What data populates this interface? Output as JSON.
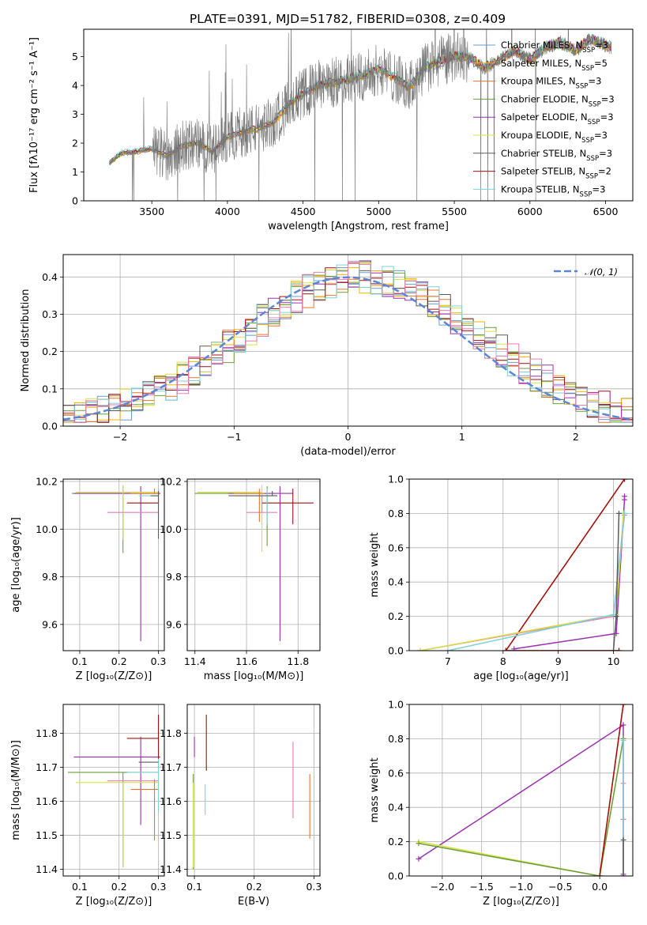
{
  "figure": {
    "title": "PLATE=0391, MJD=51782, FIBERID=0308, z=0.409"
  },
  "colors": {
    "model_palette": [
      "#6a9bd8",
      "#ffb000",
      "#e8742a",
      "#6b9e3a",
      "#9b30b0",
      "#d8e040",
      "#5a5a5a",
      "#a01010",
      "#7ed0d8"
    ],
    "pink": "#e87bb8",
    "gaussian": "#5b86d6",
    "grid": "#b0b0b0"
  },
  "chart_data": [
    {
      "id": "spectrum",
      "type": "line",
      "xlabel": "wavelength [Angstrom, rest frame]",
      "ylabel": "Flux [fλ10⁻¹⁷ erg cm⁻² s⁻¹ A⁻¹]",
      "xlim": [
        3050,
        6680
      ],
      "ylim": [
        0,
        5.95
      ],
      "xticks": [
        3500,
        4000,
        4500,
        5000,
        5500,
        6000,
        6500
      ],
      "yticks": [
        0,
        1,
        2,
        3,
        4,
        5
      ],
      "data_range": [
        3220,
        6540
      ],
      "continuum": [
        [
          3220,
          1.3
        ],
        [
          3300,
          1.65
        ],
        [
          3400,
          1.7
        ],
        [
          3500,
          1.8
        ],
        [
          3600,
          1.55
        ],
        [
          3700,
          1.9
        ],
        [
          3800,
          2.0
        ],
        [
          3900,
          1.7
        ],
        [
          4000,
          2.2
        ],
        [
          4100,
          2.4
        ],
        [
          4200,
          2.5
        ],
        [
          4300,
          2.7
        ],
        [
          4400,
          3.3
        ],
        [
          4500,
          3.7
        ],
        [
          4600,
          4.0
        ],
        [
          4700,
          4.1
        ],
        [
          4800,
          4.2
        ],
        [
          4900,
          4.35
        ],
        [
          5000,
          4.55
        ],
        [
          5100,
          4.3
        ],
        [
          5200,
          3.9
        ],
        [
          5300,
          4.6
        ],
        [
          5400,
          4.8
        ],
        [
          5500,
          5.0
        ],
        [
          5600,
          4.95
        ],
        [
          5700,
          4.6
        ],
        [
          5800,
          4.9
        ],
        [
          5900,
          5.2
        ],
        [
          6000,
          4.9
        ],
        [
          6100,
          5.3
        ],
        [
          6200,
          5.5
        ],
        [
          6300,
          5.2
        ],
        [
          6400,
          5.6
        ],
        [
          6540,
          5.3
        ]
      ],
      "legend_position": "upper right",
      "legend": [
        "Chabrier MILES, N_SSP=3",
        "Salpeter MILES, N_SSP=5",
        "Kroupa MILES, N_SSP=3",
        "Chabrier ELODIE, N_SSP=3",
        "Salpeter ELODIE, N_SSP=3",
        "Kroupa ELODIE, N_SSP=3",
        "Chabrier STELIB, N_SSP=3",
        "Salpeter STELIB, N_SSP=2",
        "Kroupa STELIB, N_SSP=3"
      ]
    },
    {
      "id": "residuals",
      "type": "line",
      "xlabel": "(data-model)/error",
      "ylabel": "Normed distribution",
      "xlim": [
        -2.5,
        2.5
      ],
      "ylim": [
        0,
        0.46
      ],
      "xticks": [
        -2,
        -1,
        0,
        1,
        2
      ],
      "yticks": [
        0.0,
        0.1,
        0.2,
        0.3,
        0.4
      ],
      "gaussian_label": "𝒩(0, 1)",
      "legend_position": "upper right",
      "hist_bins": {
        "start": -2.5,
        "width": 0.1
      }
    },
    {
      "id": "age_vs_Z",
      "type": "scatter",
      "xlabel": "Z [log₁₀(Z/Z⊙)]",
      "ylabel": "age  [log₁₀(age/yr)]",
      "xlim": [
        0.058,
        0.315
      ],
      "ylim": [
        9.49,
        10.21
      ],
      "xticks": [
        0.1,
        0.2,
        0.3
      ],
      "yticks": [
        9.6,
        9.8,
        10.0,
        10.2
      ],
      "errorbars": [
        {
          "x": 0.21,
          "y": 10.15,
          "xerr": [
            0.13,
            0.09
          ],
          "yerr": [
            0.25,
            0.03
          ],
          "color": 3
        },
        {
          "x": 0.255,
          "y": 10.15,
          "xerr": [
            0.17,
            0.05
          ],
          "yerr": [
            0.62,
            0.03
          ],
          "color": 4
        },
        {
          "x": 0.21,
          "y": 10.155,
          "xerr": [
            0.12,
            0.09
          ],
          "yerr": [
            0.2,
            0.03
          ],
          "color": 5
        },
        {
          "x": 0.3,
          "y": 10.11,
          "xerr": [
            0.08,
            0.0
          ],
          "yerr": [
            0.0,
            0.06
          ],
          "color": 7
        },
        {
          "x": 0.29,
          "y": 10.07,
          "xerr": [
            0.12,
            0.01
          ],
          "yerr": [
            0.0,
            0.0
          ],
          "color": "pink"
        },
        {
          "x": 0.29,
          "y": 10.15,
          "xerr": [
            0.06,
            0.01
          ],
          "yerr": [
            0.0,
            0.02
          ],
          "color": 2
        },
        {
          "x": 0.3,
          "y": 10.14,
          "xerr": [
            0.05,
            0.0
          ],
          "yerr": [
            0.1,
            0.03
          ],
          "color": 8
        },
        {
          "x": 0.3,
          "y": 10.14,
          "xerr": [
            0.02,
            0.0
          ],
          "yerr": [
            0.18,
            0.02
          ],
          "color": 6
        }
      ]
    },
    {
      "id": "age_vs_mass",
      "type": "scatter",
      "xlabel": "mass [log₁₀(M/M⊙)]",
      "ylabel": "",
      "xlim": [
        11.37,
        11.885
      ],
      "ylim": [
        9.49,
        10.21
      ],
      "xticks": [
        11.4,
        11.6,
        11.8
      ],
      "yticks": [
        9.6,
        9.8,
        10.0,
        10.2
      ],
      "errorbars": [
        {
          "x": 11.68,
          "y": 10.15,
          "xerr": [
            0.28,
            0.0
          ],
          "yerr": [
            0.22,
            0.03
          ],
          "color": 3
        },
        {
          "x": 11.73,
          "y": 10.15,
          "xerr": [
            0.2,
            0.05
          ],
          "yerr": [
            0.62,
            0.03
          ],
          "color": 4
        },
        {
          "x": 11.66,
          "y": 10.155,
          "xerr": [
            0.25,
            0.0
          ],
          "yerr": [
            0.25,
            0.03
          ],
          "color": 5
        },
        {
          "x": 11.78,
          "y": 10.11,
          "xerr": [
            0.12,
            0.08
          ],
          "yerr": [
            0.09,
            0.06
          ],
          "color": 7
        },
        {
          "x": 11.66,
          "y": 10.07,
          "xerr": [
            0.06,
            0.06
          ],
          "yerr": [
            0.0,
            0.07
          ],
          "color": "pink"
        },
        {
          "x": 11.65,
          "y": 10.15,
          "xerr": [
            0.1,
            0.02
          ],
          "yerr": [
            0.12,
            0.02
          ],
          "color": 2
        },
        {
          "x": 11.68,
          "y": 10.14,
          "xerr": [
            0.12,
            0.02
          ],
          "yerr": [
            0.12,
            0.03
          ],
          "color": 8
        },
        {
          "x": 11.7,
          "y": 10.14,
          "xerr": [
            0.17,
            0.02
          ],
          "yerr": [
            0.0,
            0.02
          ],
          "color": 6
        }
      ]
    },
    {
      "id": "weight_vs_age",
      "type": "line",
      "xlabel": "age  [log₁₀(age/yr)]",
      "ylabel": "mass weight",
      "xlim": [
        6.3,
        10.35
      ],
      "ylim": [
        0,
        1
      ],
      "xticks": [
        7,
        8,
        9,
        10
      ],
      "yticks": [
        0.0,
        0.2,
        0.4,
        0.6,
        0.8,
        1.0
      ],
      "series": [
        {
          "color": 2,
          "x": [
            10.1,
            8.05,
            10.2
          ],
          "y": [
            0.0,
            0.0,
            1.0
          ]
        },
        {
          "color": 7,
          "x": [
            10.1,
            8.05,
            10.2
          ],
          "y": [
            0.0,
            0.0,
            1.0
          ]
        },
        {
          "color": 4,
          "x": [
            8.2,
            10.05,
            10.2,
            10.2
          ],
          "y": [
            0.01,
            0.1,
            0.88,
            0.9
          ]
        },
        {
          "color": "pink",
          "x": [
            6.5,
            10.0,
            10.2
          ],
          "y": [
            0.0,
            0.2,
            0.79
          ]
        },
        {
          "color": 5,
          "x": [
            6.5,
            10.05,
            10.18
          ],
          "y": [
            0.0,
            0.21,
            0.8
          ]
        },
        {
          "color": 8,
          "x": [
            7.0,
            10.0,
            10.2
          ],
          "y": [
            0.0,
            0.21,
            0.8
          ]
        },
        {
          "color": 6,
          "x": [
            10.0,
            10.05,
            10.1
          ],
          "y": [
            0.0,
            0.2,
            0.8
          ]
        }
      ]
    },
    {
      "id": "mass_vs_Z",
      "type": "scatter",
      "xlabel": "Z [log₁₀(Z/Z⊙)]",
      "ylabel": "mass [log₁₀(M/M⊙)]",
      "xlim": [
        0.058,
        0.315
      ],
      "ylim": [
        11.38,
        11.885
      ],
      "xticks": [
        0.1,
        0.2,
        0.3
      ],
      "yticks": [
        11.4,
        11.5,
        11.6,
        11.7,
        11.8
      ],
      "errorbars": [
        {
          "x": 0.21,
          "y": 11.685,
          "xerr": [
            0.14,
            0.09
          ],
          "yerr": [
            0.28,
            0.0
          ],
          "color": 3
        },
        {
          "x": 0.255,
          "y": 11.73,
          "xerr": [
            0.17,
            0.05
          ],
          "yerr": [
            0.2,
            0.06
          ],
          "color": 4
        },
        {
          "x": 0.21,
          "y": 11.655,
          "xerr": [
            0.12,
            0.09
          ],
          "yerr": [
            0.25,
            0.0
          ],
          "color": 5
        },
        {
          "x": 0.3,
          "y": 11.785,
          "xerr": [
            0.08,
            0.0
          ],
          "yerr": [
            0.1,
            0.07
          ],
          "color": 7
        },
        {
          "x": 0.29,
          "y": 11.66,
          "xerr": [
            0.12,
            0.01
          ],
          "yerr": [
            0.0,
            0.0
          ],
          "color": "pink"
        },
        {
          "x": 0.29,
          "y": 11.635,
          "xerr": [
            0.06,
            0.01
          ],
          "yerr": [
            0.15,
            0.03
          ],
          "color": 2
        },
        {
          "x": 0.3,
          "y": 11.685,
          "xerr": [
            0.08,
            0.0
          ],
          "yerr": [
            0.12,
            0.04
          ],
          "color": 8
        },
        {
          "x": 0.3,
          "y": 11.715,
          "xerr": [
            0.05,
            0.0
          ],
          "yerr": [
            0.0,
            0.0
          ],
          "color": 6
        }
      ]
    },
    {
      "id": "mass_vs_ebv",
      "type": "scatter",
      "xlabel": "E(B-V)",
      "ylabel": "",
      "xlim": [
        0.088,
        0.31
      ],
      "ylim": [
        11.38,
        11.885
      ],
      "xticks": [
        0.1,
        0.2,
        0.3
      ],
      "yticks": [
        11.4,
        11.5,
        11.6,
        11.7,
        11.8
      ],
      "errorbars": [
        {
          "x": 0.098,
          "y": 11.68,
          "xerr": [
            0.0,
            0.0
          ],
          "yerr": [
            0.28,
            0.0
          ],
          "color": 3
        },
        {
          "x": 0.1,
          "y": 11.73,
          "xerr": [
            0.0,
            0.0
          ],
          "yerr": [
            0.0,
            0.06
          ],
          "color": 4
        },
        {
          "x": 0.098,
          "y": 11.655,
          "xerr": [
            0.0,
            0.0
          ],
          "yerr": [
            0.25,
            0.0
          ],
          "color": 5
        },
        {
          "x": 0.12,
          "y": 11.77,
          "xerr": [
            0.0,
            0.0
          ],
          "yerr": [
            0.08,
            0.085
          ],
          "color": 7
        },
        {
          "x": 0.265,
          "y": 11.66,
          "xerr": [
            0.0,
            0.0
          ],
          "yerr": [
            0.11,
            0.115
          ],
          "color": "pink"
        },
        {
          "x": 0.293,
          "y": 11.58,
          "xerr": [
            0.0,
            0.0
          ],
          "yerr": [
            0.09,
            0.1
          ],
          "color": 2
        },
        {
          "x": 0.118,
          "y": 11.65,
          "xerr": [
            0.0,
            0.0
          ],
          "yerr": [
            0.09,
            0.0
          ],
          "color": 8
        },
        {
          "x": 0.3,
          "y": 11.71,
          "xerr": [
            0.0,
            0.0
          ],
          "yerr": [
            0.0,
            0.0
          ],
          "color": 6
        }
      ]
    },
    {
      "id": "weight_vs_Z",
      "type": "line",
      "xlabel": "Z [log₁₀(Z/Z⊙)]",
      "ylabel": "mass weight",
      "xlim": [
        -2.42,
        0.42
      ],
      "ylim": [
        0,
        1
      ],
      "xticks": [
        -2.0,
        -1.5,
        -1.0,
        -0.5,
        0.0
      ],
      "yticks": [
        0.0,
        0.2,
        0.4,
        0.6,
        0.8,
        1.0
      ],
      "series": [
        {
          "color": 4,
          "x": [
            -2.3,
            0.3,
            0.3
          ],
          "y": [
            0.1,
            0.88,
            0.01
          ]
        },
        {
          "color": 5,
          "x": [
            -2.3,
            0.0,
            0.3,
            0.3
          ],
          "y": [
            0.2,
            0.0,
            0.8,
            0.8
          ]
        },
        {
          "color": 3,
          "x": [
            -2.3,
            0.0,
            0.3
          ],
          "y": [
            0.19,
            0.0,
            0.8
          ]
        },
        {
          "color": "pink",
          "x": [
            0.3,
            0.3,
            0.3
          ],
          "y": [
            0.0,
            0.54,
            0.33
          ]
        },
        {
          "color": 8,
          "x": [
            0.3,
            0.3,
            0.3
          ],
          "y": [
            0.0,
            0.79,
            0.21
          ]
        },
        {
          "color": 6,
          "x": [
            0.3,
            0.3
          ],
          "y": [
            0.0,
            0.21
          ]
        },
        {
          "color": 2,
          "x": [
            0.0,
            0.3
          ],
          "y": [
            0.0,
            1.0
          ]
        },
        {
          "color": 7,
          "x": [
            0.0,
            0.3
          ],
          "y": [
            0.0,
            1.0
          ]
        }
      ]
    }
  ]
}
